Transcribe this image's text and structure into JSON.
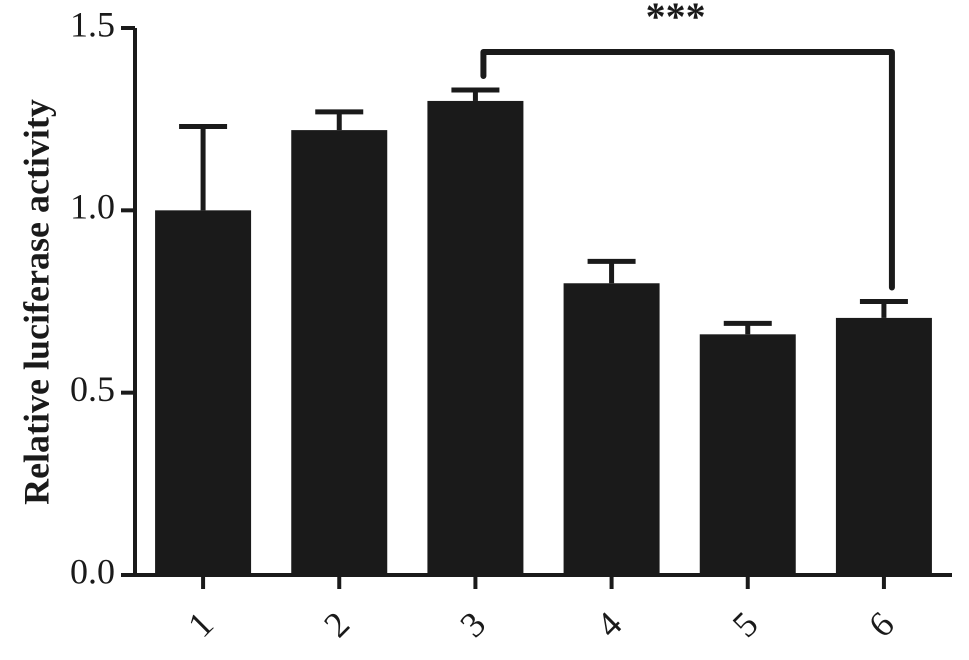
{
  "chart_data": {
    "type": "bar",
    "y_label": "Relative luciferase activity",
    "categories": [
      "1",
      "2",
      "3",
      "4",
      "5",
      "6"
    ],
    "values": [
      1.0,
      1.22,
      1.3,
      0.8,
      0.66,
      0.705
    ],
    "errors": [
      0.23,
      0.05,
      0.03,
      0.06,
      0.03,
      0.045
    ],
    "color": "#1a1a1a",
    "ylim": [
      0,
      1.5
    ],
    "yticks": [
      {
        "value": 0,
        "label": "0.0"
      },
      0.5,
      {
        "value": 1,
        "label": "1.0"
      },
      1.5
    ],
    "annotation": "***"
  }
}
